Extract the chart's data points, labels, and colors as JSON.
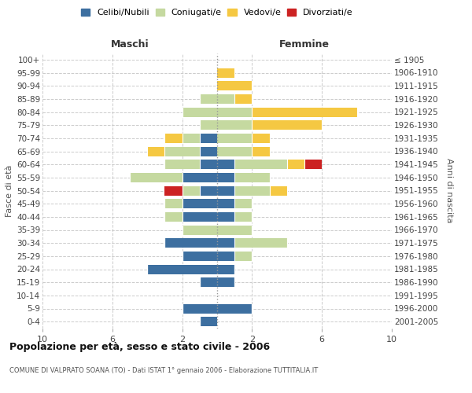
{
  "age_groups": [
    "0-4",
    "5-9",
    "10-14",
    "15-19",
    "20-24",
    "25-29",
    "30-34",
    "35-39",
    "40-44",
    "45-49",
    "50-54",
    "55-59",
    "60-64",
    "65-69",
    "70-74",
    "75-79",
    "80-84",
    "85-89",
    "90-94",
    "95-99",
    "100+"
  ],
  "birth_years": [
    "2001-2005",
    "1996-2000",
    "1991-1995",
    "1986-1990",
    "1981-1985",
    "1976-1980",
    "1971-1975",
    "1966-1970",
    "1961-1965",
    "1956-1960",
    "1951-1955",
    "1946-1950",
    "1941-1945",
    "1936-1940",
    "1931-1935",
    "1926-1930",
    "1921-1925",
    "1916-1920",
    "1911-1915",
    "1906-1910",
    "≤ 1905"
  ],
  "males_celibi": [
    1,
    2,
    0,
    1,
    4,
    2,
    3,
    0,
    2,
    2,
    1,
    2,
    1,
    1,
    1,
    0,
    0,
    0,
    0,
    0,
    0
  ],
  "males_coniugati": [
    0,
    0,
    0,
    0,
    0,
    0,
    0,
    2,
    1,
    1,
    1,
    3,
    2,
    2,
    1,
    1,
    2,
    1,
    0,
    0,
    0
  ],
  "males_vedovi": [
    0,
    0,
    0,
    0,
    0,
    0,
    0,
    0,
    0,
    0,
    0,
    0,
    0,
    1,
    1,
    0,
    0,
    0,
    0,
    0,
    0
  ],
  "males_divorziati": [
    0,
    0,
    0,
    0,
    0,
    0,
    0,
    0,
    0,
    0,
    1,
    0,
    0,
    0,
    0,
    0,
    0,
    0,
    0,
    0,
    0
  ],
  "females_nubili": [
    0,
    2,
    0,
    1,
    1,
    1,
    1,
    0,
    1,
    1,
    1,
    1,
    1,
    0,
    0,
    0,
    0,
    0,
    0,
    0,
    0
  ],
  "females_coniugate": [
    0,
    0,
    0,
    0,
    0,
    1,
    3,
    2,
    1,
    1,
    2,
    2,
    3,
    2,
    2,
    2,
    2,
    1,
    0,
    0,
    0
  ],
  "females_vedove": [
    0,
    0,
    0,
    0,
    0,
    0,
    0,
    0,
    0,
    0,
    1,
    0,
    1,
    1,
    1,
    4,
    6,
    1,
    2,
    1,
    0
  ],
  "females_divorziate": [
    0,
    0,
    0,
    0,
    0,
    0,
    0,
    0,
    0,
    0,
    0,
    0,
    1,
    0,
    0,
    0,
    0,
    0,
    0,
    0,
    0
  ],
  "color_celibi": "#3d6fa0",
  "color_coniugati": "#c5d9a0",
  "color_vedovi": "#f5c842",
  "color_divorziati": "#cc2222",
  "title": "Popolazione per età, sesso e stato civile - 2006",
  "subtitle": "COMUNE DI VALPRATO SOANA (TO) - Dati ISTAT 1° gennaio 2006 - Elaborazione TUTTITALIA.IT",
  "label_maschi": "Maschi",
  "label_femmine": "Femmine",
  "label_fasce": "Fasce di età",
  "label_anni": "Anni di nascita",
  "legend_labels": [
    "Celibi/Nubili",
    "Coniugati/e",
    "Vedovi/e",
    "Divorziati/e"
  ],
  "xticks": [
    -10,
    -6,
    -2,
    2,
    6,
    10
  ],
  "xlim": 10,
  "bg_color": "#ffffff",
  "grid_color": "#cccccc"
}
